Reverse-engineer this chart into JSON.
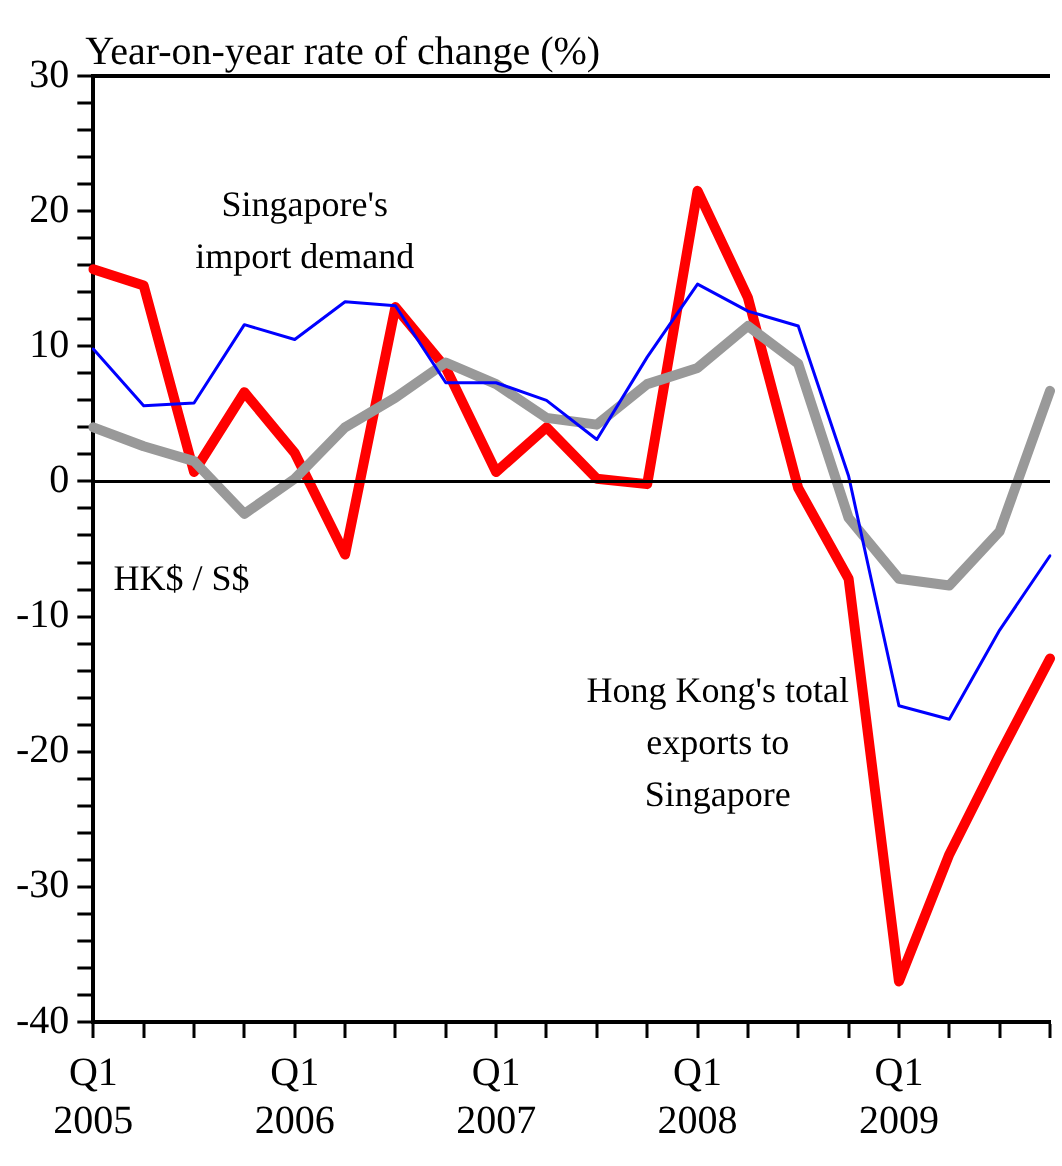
{
  "chart_data": {
    "type": "line",
    "ylabel": "Year-on-year rate of change (%)",
    "categories": [
      "Q1 2005",
      null,
      null,
      null,
      "Q1 2006",
      null,
      null,
      null,
      "Q1 2007",
      null,
      null,
      null,
      "Q1 2008",
      null,
      null,
      null,
      "Q1 2009",
      null,
      null,
      null
    ],
    "series": [
      {
        "color": "#0000ff",
        "values": [
          9.8,
          5.6,
          5.8,
          11.6,
          10.5,
          13.3,
          13.0,
          7.3,
          7.3,
          6.0,
          3.1,
          9.2,
          14.6,
          12.6,
          11.5,
          0.4,
          -16.6,
          -17.6,
          -11,
          -5.5
        ]
      },
      {
        "color": "#999999",
        "values": [
          4.0,
          2.6,
          1.5,
          -2.4,
          0.2,
          4.0,
          6.2,
          8.8,
          7.2,
          4.7,
          4.2,
          7.2,
          8.4,
          11.5,
          8.7,
          -2.7,
          -7.2,
          -7.7,
          -3.7,
          6.7
        ]
      },
      {
        "color": "#ff0000",
        "values": [
          15.7,
          14.5,
          0.7,
          6.6,
          2.1,
          -5.4,
          12.9,
          8.4,
          0.7,
          4.0,
          0.2,
          -0.2,
          21.5,
          13.6,
          -0.5,
          -7.2,
          -37,
          -27.6,
          -20.2,
          -13.1
        ]
      }
    ],
    "annotations": [
      "Singapore's import demand",
      "HK$ / S$",
      "Hong Kong's total exports to Singapore"
    ],
    "ylim": [
      -40,
      30
    ],
    "yticks": [
      -40,
      {
        "value": -38,
        "label": null
      },
      {
        "value": -36,
        "label": null
      },
      {
        "value": -34,
        "label": null
      },
      {
        "value": -32,
        "label": null
      },
      -30,
      {
        "value": -28,
        "label": null
      },
      {
        "value": -26,
        "label": null
      },
      {
        "value": -24,
        "label": null
      },
      {
        "value": -22,
        "label": null
      },
      -20,
      {
        "value": -18,
        "label": null
      },
      {
        "value": -16,
        "label": null
      },
      {
        "value": -14,
        "label": null
      },
      {
        "value": -12,
        "label": null
      },
      -10,
      {
        "value": -8,
        "label": null
      },
      {
        "value": -6,
        "label": null
      },
      {
        "value": -4,
        "label": null
      },
      {
        "value": -2,
        "label": null
      },
      0,
      {
        "value": 2,
        "label": null
      },
      {
        "value": 4,
        "label": null
      },
      {
        "value": 6,
        "label": null
      },
      {
        "value": 8,
        "label": null
      },
      10,
      {
        "value": 12,
        "label": null
      },
      {
        "value": 14,
        "label": null
      },
      {
        "value": 16,
        "label": null
      },
      {
        "value": 18,
        "label": null
      },
      20,
      {
        "value": 22,
        "label": null
      },
      {
        "value": 24,
        "label": null
      },
      {
        "value": 26,
        "label": null
      },
      {
        "value": 28,
        "label": null
      },
      30
    ],
    "ref_lines": [
      {
        "axis": "y",
        "value": 0,
        "color": "#000000"
      }
    ],
    "grid": false,
    "legend": false,
    "marker": "none",
    "line_style": "solid"
  }
}
